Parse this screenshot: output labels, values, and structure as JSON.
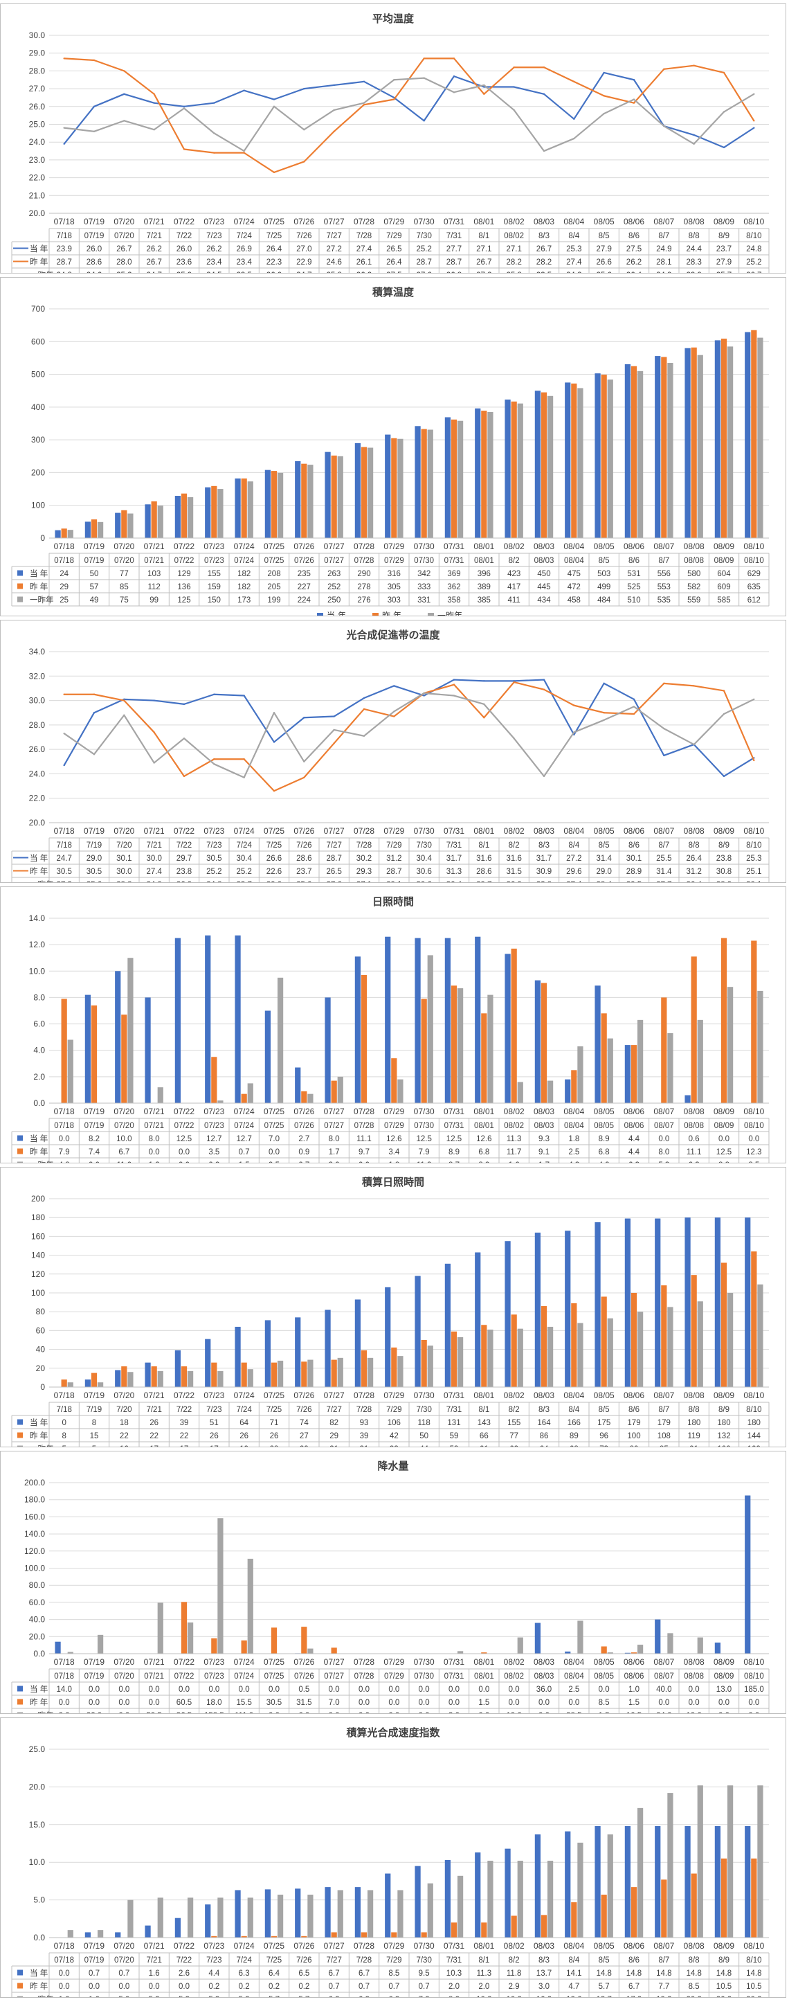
{
  "colors": {
    "current": "#4472c4",
    "last": "#ed7d31",
    "twoago": "#a5a5a5",
    "grid": "#d9d9d9",
    "axis": "#bfbfbf",
    "text": "#404040"
  },
  "series_names": [
    "当 年",
    "昨 年",
    "一昨年"
  ],
  "chart_data": [
    {
      "type": "line",
      "title": "平均温度",
      "ylim": [
        20,
        30
      ],
      "ystep": 1,
      "ydec": 1,
      "x": [
        "07/18",
        "07/19",
        "07/20",
        "07/21",
        "07/22",
        "07/23",
        "07/24",
        "07/25",
        "07/26",
        "07/27",
        "07/28",
        "07/29",
        "07/30",
        "07/31",
        "08/01",
        "08/02",
        "08/03",
        "08/04",
        "08/05",
        "08/06",
        "08/07",
        "08/08",
        "08/09",
        "08/10"
      ],
      "xrow": [
        "7/18",
        "07/19",
        "07/20",
        "7/21",
        "7/22",
        "7/23",
        "7/24",
        "7/25",
        "7/26",
        "7/27",
        "7/28",
        "7/29",
        "7/30",
        "7/31",
        "8/1",
        "08/02",
        "8/3",
        "8/4",
        "8/5",
        "8/6",
        "8/7",
        "8/8",
        "8/9",
        "8/10"
      ],
      "series": [
        {
          "name": "当 年",
          "values": [
            23.9,
            26.0,
            26.7,
            26.2,
            26.0,
            26.2,
            26.9,
            26.4,
            27.0,
            27.2,
            27.4,
            26.5,
            25.2,
            27.7,
            27.1,
            27.1,
            26.7,
            25.3,
            27.9,
            27.5,
            24.9,
            24.4,
            23.7,
            24.8
          ]
        },
        {
          "name": "昨 年",
          "values": [
            28.7,
            28.6,
            28.0,
            26.7,
            23.6,
            23.4,
            23.4,
            22.3,
            22.9,
            24.6,
            26.1,
            26.4,
            28.7,
            28.7,
            26.7,
            28.2,
            28.2,
            27.4,
            26.6,
            26.2,
            28.1,
            28.3,
            27.9,
            25.2
          ]
        },
        {
          "name": "一昨年",
          "values": [
            24.8,
            24.6,
            25.2,
            24.7,
            25.9,
            24.5,
            23.5,
            26.0,
            24.7,
            25.8,
            26.2,
            27.5,
            27.6,
            26.8,
            27.2,
            25.8,
            23.5,
            24.2,
            25.6,
            26.4,
            24.9,
            23.9,
            25.7,
            26.7
          ]
        }
      ]
    },
    {
      "type": "bar",
      "title": "積算温度",
      "ylim": [
        0,
        700
      ],
      "ystep": 100,
      "ydec": 0,
      "legend": "bottom",
      "x": [
        "07/18",
        "07/19",
        "07/20",
        "07/21",
        "07/22",
        "07/23",
        "07/24",
        "07/25",
        "07/26",
        "07/27",
        "07/28",
        "07/29",
        "07/30",
        "07/31",
        "08/01",
        "08/02",
        "08/03",
        "08/04",
        "08/05",
        "08/06",
        "08/07",
        "08/08",
        "08/09",
        "08/10"
      ],
      "xrow": [
        "07/18",
        "07/19",
        "07/20",
        "07/21",
        "07/22",
        "07/23",
        "07/24",
        "07/25",
        "07/26",
        "07/27",
        "07/28",
        "07/29",
        "07/30",
        "07/31",
        "08/01",
        "8/2",
        "08/03",
        "08/04",
        "8/5",
        "8/6",
        "8/7",
        "08/08",
        "08/09",
        "08/10"
      ],
      "series": [
        {
          "name": "当 年",
          "values": [
            24,
            50,
            77,
            103,
            129,
            155,
            182,
            208,
            235,
            263,
            290,
            316,
            342,
            369,
            396,
            423,
            450,
            475,
            503,
            531,
            556,
            580,
            604,
            629
          ]
        },
        {
          "name": "昨 年",
          "values": [
            29,
            57,
            85,
            112,
            136,
            159,
            182,
            205,
            227,
            252,
            278,
            305,
            333,
            362,
            389,
            417,
            445,
            472,
            499,
            525,
            553,
            582,
            609,
            635
          ]
        },
        {
          "name": "一昨年",
          "values": [
            25,
            49,
            75,
            99,
            125,
            150,
            173,
            199,
            224,
            250,
            276,
            303,
            331,
            358,
            385,
            411,
            434,
            458,
            484,
            510,
            535,
            559,
            585,
            612
          ]
        }
      ]
    },
    {
      "type": "line",
      "title": "光合成促進帯の温度",
      "ylim": [
        20,
        34
      ],
      "ystep": 2,
      "ydec": 1,
      "x": [
        "07/18",
        "07/19",
        "07/20",
        "07/21",
        "07/22",
        "07/23",
        "07/24",
        "07/25",
        "07/26",
        "07/27",
        "07/28",
        "07/29",
        "07/30",
        "07/31",
        "08/01",
        "08/02",
        "08/03",
        "08/04",
        "08/05",
        "08/06",
        "08/07",
        "08/08",
        "08/09",
        "08/10"
      ],
      "xrow": [
        "7/18",
        "7/19",
        "7/20",
        "7/21",
        "7/22",
        "7/23",
        "7/24",
        "7/25",
        "7/26",
        "7/27",
        "7/28",
        "7/29",
        "7/30",
        "7/31",
        "8/1",
        "8/2",
        "8/3",
        "8/4",
        "8/5",
        "8/6",
        "8/7",
        "8/8",
        "8/9",
        "8/10"
      ],
      "series": [
        {
          "name": "当 年",
          "values": [
            24.7,
            29.0,
            30.1,
            30.0,
            29.7,
            30.5,
            30.4,
            26.6,
            28.6,
            28.7,
            30.2,
            31.2,
            30.4,
            31.7,
            31.6,
            31.6,
            31.7,
            27.2,
            31.4,
            30.1,
            25.5,
            26.4,
            23.8,
            25.3
          ]
        },
        {
          "name": "昨 年",
          "values": [
            30.5,
            30.5,
            30.0,
            27.4,
            23.8,
            25.2,
            25.2,
            22.6,
            23.7,
            26.5,
            29.3,
            28.7,
            30.6,
            31.3,
            28.6,
            31.5,
            30.9,
            29.6,
            29.0,
            28.9,
            31.4,
            31.2,
            30.8,
            25.1
          ]
        },
        {
          "name": "一昨年",
          "values": [
            27.3,
            25.6,
            28.8,
            24.9,
            26.9,
            24.8,
            23.7,
            29.0,
            25.0,
            27.6,
            27.1,
            29.1,
            30.6,
            30.4,
            29.7,
            26.9,
            23.8,
            27.4,
            28.4,
            29.5,
            27.7,
            26.4,
            28.9,
            30.1
          ]
        }
      ]
    },
    {
      "type": "bar",
      "title": "日照時間",
      "ylim": [
        0,
        14
      ],
      "ystep": 2,
      "ydec": 1,
      "x": [
        "07/18",
        "07/19",
        "07/20",
        "07/21",
        "07/22",
        "07/23",
        "07/24",
        "07/25",
        "07/26",
        "07/27",
        "07/28",
        "07/29",
        "07/30",
        "07/31",
        "08/01",
        "08/02",
        "08/03",
        "08/04",
        "08/05",
        "08/06",
        "08/07",
        "08/08",
        "08/09",
        "08/10"
      ],
      "xrow": [
        "07/18",
        "07/19",
        "07/20",
        "07/21",
        "07/22",
        "07/23",
        "07/24",
        "07/25",
        "07/26",
        "07/27",
        "07/28",
        "07/29",
        "07/30",
        "07/31",
        "08/01",
        "08/02",
        "08/03",
        "08/04",
        "08/05",
        "08/06",
        "08/07",
        "08/08",
        "08/09",
        "08/10"
      ],
      "series": [
        {
          "name": "当 年",
          "values": [
            0.0,
            8.2,
            10.0,
            8.0,
            12.5,
            12.7,
            12.7,
            7.0,
            2.7,
            8.0,
            11.1,
            12.6,
            12.5,
            12.5,
            12.6,
            11.3,
            9.3,
            1.8,
            8.9,
            4.4,
            0.0,
            0.6,
            0.0,
            0.0
          ]
        },
        {
          "name": "昨 年",
          "values": [
            7.9,
            7.4,
            6.7,
            0.0,
            0.0,
            3.5,
            0.7,
            0.0,
            0.9,
            1.7,
            9.7,
            3.4,
            7.9,
            8.9,
            6.8,
            11.7,
            9.1,
            2.5,
            6.8,
            4.4,
            8.0,
            11.1,
            12.5,
            12.3
          ]
        },
        {
          "name": "一昨年",
          "values": [
            4.8,
            0.0,
            11.0,
            1.2,
            0.0,
            0.2,
            1.5,
            9.5,
            0.7,
            2.0,
            0.0,
            1.8,
            11.2,
            8.7,
            8.2,
            1.6,
            1.7,
            4.3,
            4.9,
            6.3,
            5.3,
            6.3,
            8.8,
            8.5
          ]
        }
      ]
    },
    {
      "type": "bar",
      "title": "積算日照時間",
      "ylim": [
        0,
        200
      ],
      "ystep": 20,
      "ydec": 0,
      "x": [
        "07/18",
        "07/19",
        "07/20",
        "07/21",
        "07/22",
        "07/23",
        "07/24",
        "07/25",
        "07/26",
        "07/27",
        "07/28",
        "07/29",
        "07/30",
        "07/31",
        "08/01",
        "08/02",
        "08/03",
        "08/04",
        "08/05",
        "08/06",
        "08/07",
        "08/08",
        "08/09",
        "08/10"
      ],
      "xrow": [
        "7/18",
        "7/19",
        "7/20",
        "7/21",
        "7/22",
        "7/23",
        "7/24",
        "7/25",
        "7/26",
        "7/27",
        "7/28",
        "7/29",
        "7/30",
        "7/31",
        "8/1",
        "8/2",
        "8/3",
        "8/4",
        "8/5",
        "8/6",
        "8/7",
        "8/8",
        "8/9",
        "8/10"
      ],
      "series": [
        {
          "name": "当 年",
          "values": [
            0,
            8,
            18,
            26,
            39,
            51,
            64,
            71,
            74,
            82,
            93,
            106,
            118,
            131,
            143,
            155,
            164,
            166,
            175,
            179,
            179,
            180,
            180,
            180
          ]
        },
        {
          "name": "昨 年",
          "values": [
            8,
            15,
            22,
            22,
            22,
            26,
            26,
            26,
            27,
            29,
            39,
            42,
            50,
            59,
            66,
            77,
            86,
            89,
            96,
            100,
            108,
            119,
            132,
            144
          ]
        },
        {
          "name": "一昨年",
          "values": [
            5,
            5,
            16,
            17,
            17,
            17,
            19,
            28,
            29,
            31,
            31,
            33,
            44,
            53,
            61,
            62,
            64,
            68,
            73,
            80,
            85,
            91,
            100,
            109
          ]
        }
      ]
    },
    {
      "type": "bar",
      "title": "降水量",
      "ylim": [
        0,
        200
      ],
      "ystep": 20,
      "ydec": 1,
      "x": [
        "07/18",
        "07/19",
        "07/20",
        "07/21",
        "07/22",
        "07/23",
        "07/24",
        "07/25",
        "07/26",
        "07/27",
        "07/28",
        "07/29",
        "07/30",
        "07/31",
        "08/01",
        "08/02",
        "08/03",
        "08/04",
        "08/05",
        "08/06",
        "08/07",
        "08/08",
        "08/09",
        "08/10"
      ],
      "xrow": [
        "07/18",
        "07/19",
        "07/20",
        "07/21",
        "07/22",
        "07/23",
        "07/24",
        "07/25",
        "07/26",
        "07/27",
        "07/28",
        "07/29",
        "07/30",
        "07/31",
        "08/01",
        "08/02",
        "08/03",
        "08/04",
        "08/05",
        "08/06",
        "08/07",
        "08/08",
        "08/09",
        "08/10"
      ],
      "series": [
        {
          "name": "当 年",
          "values": [
            14.0,
            0.0,
            0.0,
            0.0,
            0.0,
            0.0,
            0.0,
            0.0,
            0.5,
            0.0,
            0.0,
            0.0,
            0.0,
            0.0,
            0.0,
            0.0,
            36.0,
            2.5,
            0.0,
            1.0,
            40.0,
            0.0,
            13.0,
            185.0
          ]
        },
        {
          "name": "昨 年",
          "values": [
            0.0,
            0.0,
            0.0,
            0.0,
            60.5,
            18.0,
            15.5,
            30.5,
            31.5,
            7.0,
            0.0,
            0.0,
            0.0,
            0.0,
            1.5,
            0.0,
            0.0,
            0.0,
            8.5,
            1.5,
            0.0,
            0.0,
            0.0,
            0.0
          ]
        },
        {
          "name": "一昨年",
          "values": [
            2.0,
            22.0,
            0.0,
            59.5,
            36.5,
            158.5,
            111.0,
            0.0,
            6.0,
            0.0,
            0.0,
            0.0,
            0.0,
            3.0,
            0.0,
            19.0,
            0.0,
            38.5,
            1.5,
            10.5,
            24.0,
            19.0,
            0.0,
            0.0
          ]
        }
      ]
    },
    {
      "type": "bar",
      "title": "積算光合成速度指数",
      "ylim": [
        0,
        25
      ],
      "ystep": 5,
      "ydec": 1,
      "x": [
        "07/18",
        "07/19",
        "07/20",
        "07/21",
        "07/22",
        "07/23",
        "07/24",
        "07/25",
        "07/26",
        "07/27",
        "07/28",
        "07/29",
        "07/30",
        "07/31",
        "08/01",
        "08/02",
        "08/03",
        "08/04",
        "08/05",
        "08/06",
        "08/07",
        "08/08",
        "08/09",
        "08/10"
      ],
      "xrow": [
        "07/18",
        "07/19",
        "07/20",
        "7/21",
        "7/22",
        "7/23",
        "7/24",
        "7/25",
        "7/26",
        "7/27",
        "7/28",
        "7/29",
        "7/30",
        "7/31",
        "8/1",
        "8/2",
        "8/3",
        "8/4",
        "8/5",
        "8/6",
        "8/7",
        "8/8",
        "8/9",
        "8/10"
      ],
      "series": [
        {
          "name": "当 年",
          "values": [
            0.0,
            0.7,
            0.7,
            1.6,
            2.6,
            4.4,
            6.3,
            6.4,
            6.5,
            6.7,
            6.7,
            8.5,
            9.5,
            10.3,
            11.3,
            11.8,
            13.7,
            14.1,
            14.8,
            14.8,
            14.8,
            14.8,
            14.8,
            14.8
          ]
        },
        {
          "name": "昨 年",
          "values": [
            0.0,
            0.0,
            0.0,
            0.0,
            0.0,
            0.2,
            0.2,
            0.2,
            0.2,
            0.7,
            0.7,
            0.7,
            0.7,
            2.0,
            2.0,
            2.9,
            3.0,
            4.7,
            5.7,
            6.7,
            7.7,
            8.5,
            10.5,
            10.5
          ]
        },
        {
          "name": "一昨年",
          "values": [
            1.0,
            1.0,
            5.0,
            5.3,
            5.3,
            5.3,
            5.3,
            5.7,
            5.7,
            6.3,
            6.3,
            6.3,
            7.2,
            8.2,
            10.2,
            10.2,
            10.2,
            12.6,
            13.7,
            17.2,
            19.2,
            20.2,
            20.2,
            20.2
          ]
        }
      ]
    }
  ]
}
